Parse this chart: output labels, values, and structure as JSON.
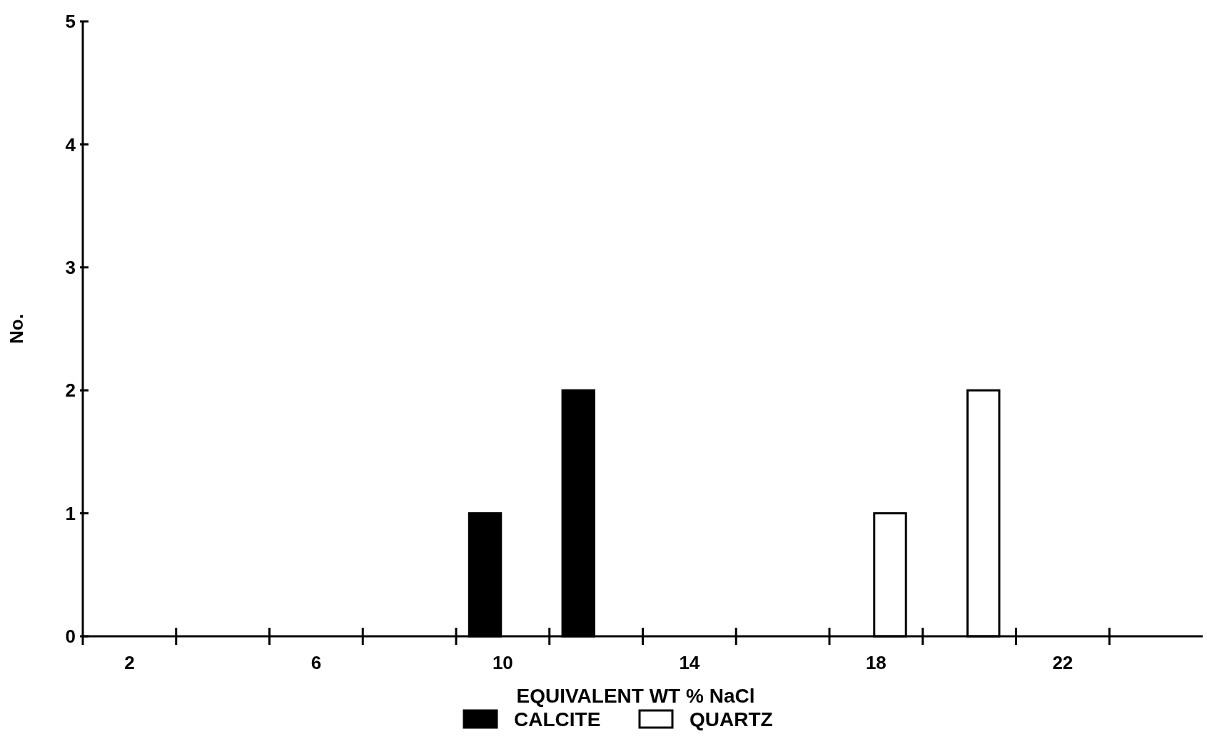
{
  "chart_data": {
    "type": "bar",
    "xlabel": "EQUIVALENT WT % NaCl",
    "ylabel": "No.",
    "categories": [
      "2",
      null,
      "6",
      null,
      "10",
      null,
      "14",
      null,
      "18",
      null,
      "22",
      null
    ],
    "series": [
      {
        "name": "CALCITE",
        "color": "#000000",
        "values": [
          0,
          0,
          0,
          0,
          1,
          2,
          0,
          0,
          0,
          0,
          0,
          0
        ]
      },
      {
        "name": "QUARTZ",
        "color": "#ffffff",
        "values": [
          0,
          0,
          0,
          0,
          0,
          0,
          0,
          0,
          1,
          2,
          0,
          0
        ]
      }
    ],
    "ylim": [
      0,
      5
    ],
    "yticks": [
      0,
      1,
      2,
      3,
      4,
      5
    ],
    "grid": false,
    "legend": "bottom"
  }
}
